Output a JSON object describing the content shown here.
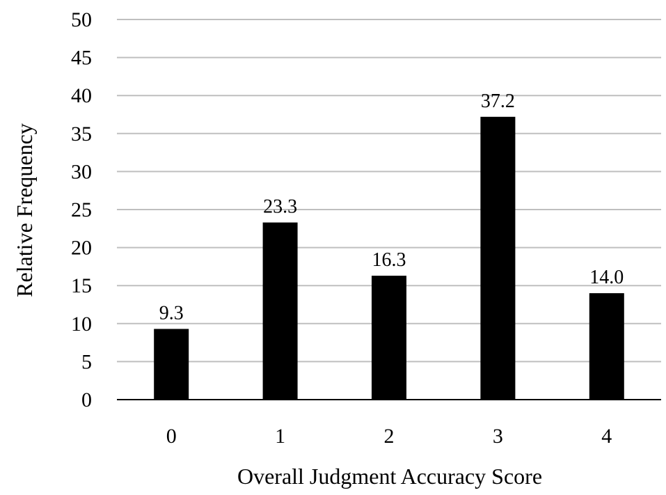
{
  "chart_data": {
    "type": "bar",
    "title": "",
    "xlabel": "Overall Judgment Accuracy Score",
    "ylabel": "Relative Frequency",
    "categories": [
      "0",
      "1",
      "2",
      "3",
      "4"
    ],
    "values": [
      9.3,
      23.3,
      16.3,
      37.2,
      14.0
    ],
    "value_labels": [
      "9.3",
      "23.3",
      "16.3",
      "37.2",
      "14.0"
    ],
    "y_ticks": [
      0,
      5,
      10,
      15,
      20,
      25,
      30,
      35,
      40,
      45,
      50
    ],
    "ylim": [
      0,
      50
    ],
    "grid": true,
    "legend": "none",
    "bar_color": "#000000",
    "grid_color": "#bfbfbf"
  }
}
